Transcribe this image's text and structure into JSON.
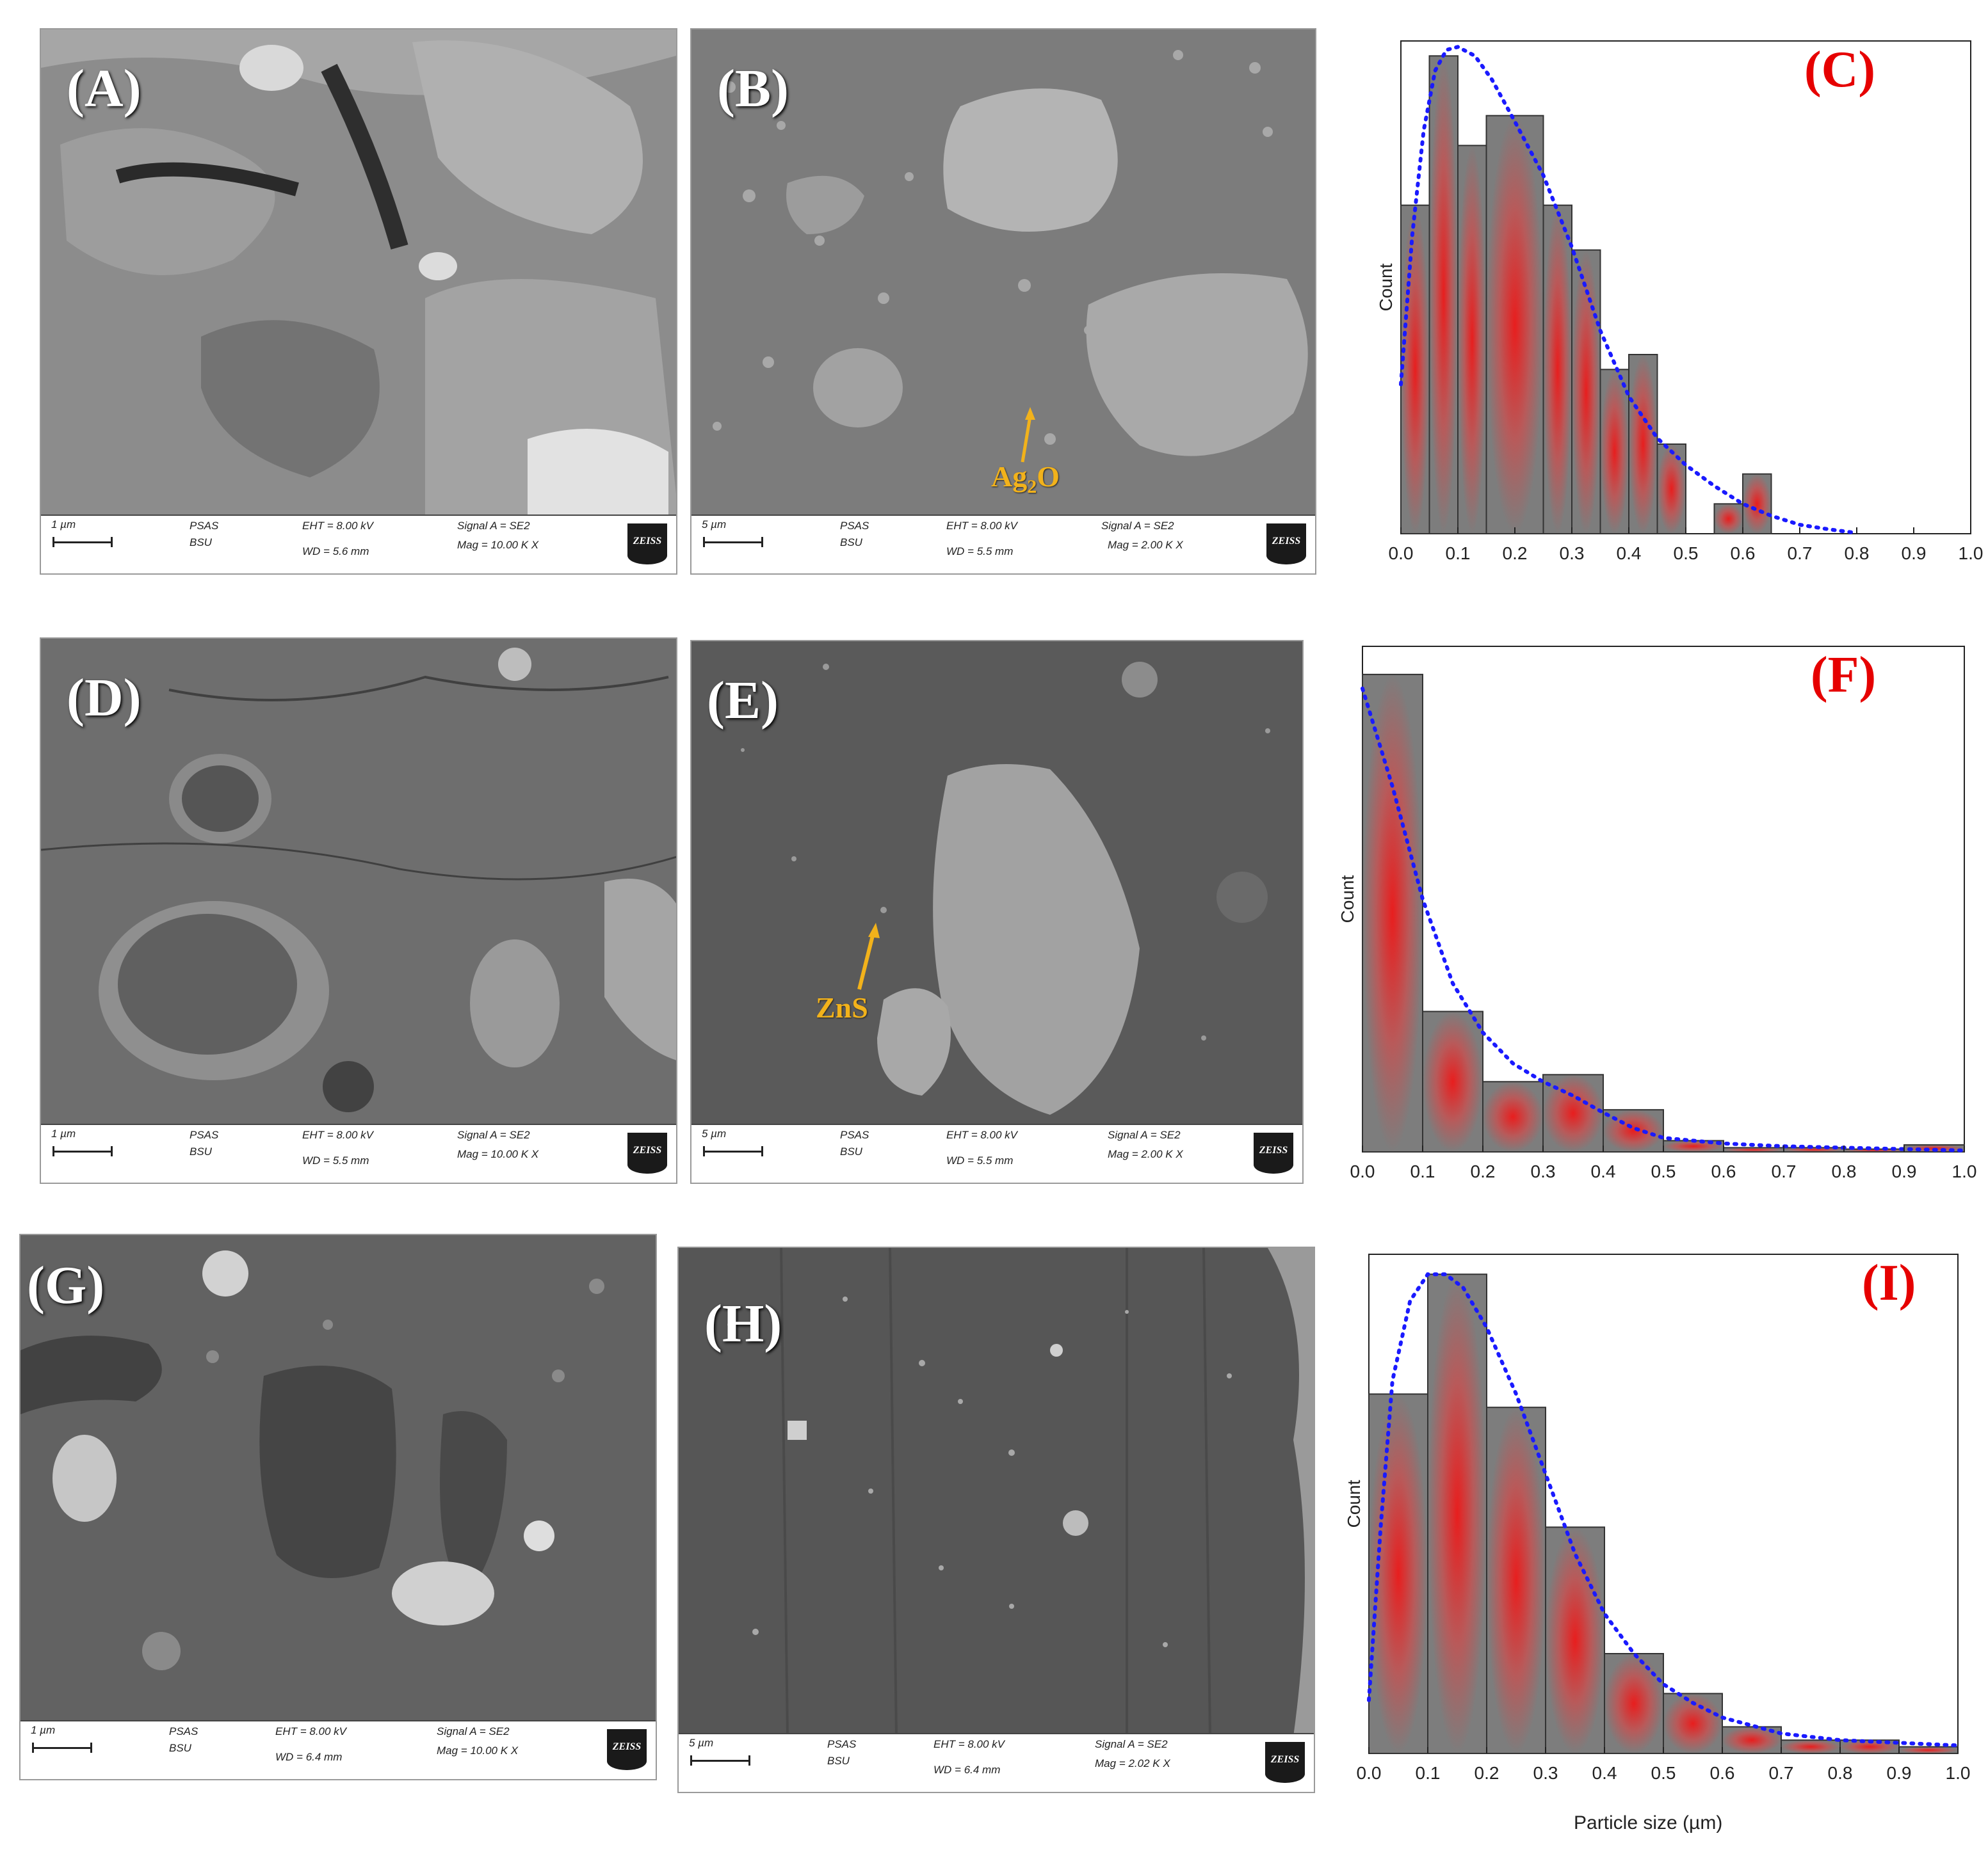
{
  "sem_panels": [
    {
      "id": "A",
      "label": "(A)",
      "scale": "1 µm",
      "lab": "PSAS",
      "dept": "BSU",
      "eht": "EHT = 8.00 kV",
      "wd": "WD = 5.6 mm",
      "signal": "Signal A = SE2",
      "mag": "Mag = 10.00 K X",
      "brand": "ZEISS",
      "tone": "#8a8a8a"
    },
    {
      "id": "B",
      "label": "(B)",
      "scale": "5 µm",
      "lab": "PSAS",
      "dept": "BSU",
      "eht": "EHT = 8.00 kV",
      "wd": "WD = 5.5 mm",
      "signal": "Signal A = SE2",
      "mag": "Mag = 2.00 K X",
      "brand": "ZEISS",
      "tone": "#7d7d7d",
      "annotation": "Ag2O"
    },
    {
      "id": "D",
      "label": "(D)",
      "scale": "1 µm",
      "lab": "PSAS",
      "dept": "BSU",
      "eht": "EHT = 8.00 kV",
      "wd": "WD = 5.5 mm",
      "signal": "Signal A = SE2",
      "mag": "Mag = 10.00 K X",
      "brand": "ZEISS",
      "tone": "#6e6e6e"
    },
    {
      "id": "E",
      "label": "(E)",
      "scale": "5 µm",
      "lab": "PSAS",
      "dept": "BSU",
      "eht": "EHT = 8.00 kV",
      "wd": "WD = 5.5 mm",
      "signal": "Signal A = SE2",
      "mag": "Mag = 2.00 K X",
      "brand": "ZEISS",
      "tone": "#5c5c5c",
      "annotation": "ZnS"
    },
    {
      "id": "G",
      "label": "(G)",
      "scale": "1 µm",
      "lab": "PSAS",
      "dept": "BSU",
      "eht": "EHT = 8.00 kV",
      "wd": "WD = 6.4 mm",
      "signal": "Signal A = SE2",
      "mag": "Mag = 10.00 K X",
      "brand": "ZEISS",
      "tone": "#636363"
    },
    {
      "id": "H",
      "label": "(H)",
      "scale": "5 µm",
      "lab": "PSAS",
      "dept": "BSU",
      "eht": "EHT = 8.00 kV",
      "wd": "WD = 6.4 mm",
      "signal": "Signal A = SE2",
      "mag": "Mag = 2.02 K X",
      "brand": "ZEISS",
      "tone": "#585858"
    }
  ],
  "chart_data": [
    {
      "type": "bar",
      "panel": "(C)",
      "ylabel": "Count",
      "xlabel": "",
      "xlim": [
        0.0,
        1.0
      ],
      "xticks": [
        "0.0",
        "0.1",
        "0.2",
        "0.3",
        "0.4",
        "0.5",
        "0.6",
        "0.7",
        "0.8",
        "0.9",
        "1.0"
      ],
      "bin_edges": [
        0.0,
        0.05,
        0.1,
        0.15,
        0.25,
        0.3,
        0.35,
        0.4,
        0.45,
        0.5,
        0.55,
        0.6,
        0.65
      ],
      "values": [
        11,
        16,
        13,
        14,
        11,
        9.5,
        5.5,
        6,
        3,
        0,
        1,
        2
      ],
      "ylim": [
        0,
        16.5
      ],
      "fit_curve": {
        "x": [
          0.0,
          0.02,
          0.04,
          0.06,
          0.08,
          0.1,
          0.13,
          0.16,
          0.2,
          0.25,
          0.3,
          0.35,
          0.4,
          0.45,
          0.5,
          0.55,
          0.6,
          0.65,
          0.7,
          0.75,
          0.79
        ],
        "y": [
          5,
          10,
          13.5,
          15.5,
          16.2,
          16.3,
          16,
          15.2,
          13.8,
          12,
          9.6,
          6.8,
          4.6,
          3.2,
          2.3,
          1.6,
          1.0,
          0.6,
          0.3,
          0.15,
          0.05
        ]
      },
      "grid": false
    },
    {
      "type": "bar",
      "panel": "(F)",
      "ylabel": "Count",
      "xlabel": "",
      "xlim": [
        0.0,
        1.0
      ],
      "xticks": [
        "0.0",
        "0.1",
        "0.2",
        "0.3",
        "0.4",
        "0.5",
        "0.6",
        "0.7",
        "0.8",
        "0.9",
        "1.0"
      ],
      "bin_edges": [
        0.0,
        0.1,
        0.2,
        0.3,
        0.4,
        0.5,
        0.6,
        0.7,
        0.8,
        0.9,
        1.0
      ],
      "values": [
        34,
        10,
        5,
        5.5,
        3,
        0.8,
        0.3,
        0.3,
        0.2,
        0.5
      ],
      "ylim": [
        0,
        36
      ],
      "fit_curve": {
        "x": [
          0.0,
          0.05,
          0.1,
          0.15,
          0.2,
          0.25,
          0.3,
          0.35,
          0.4,
          0.45,
          0.5,
          0.6,
          0.7,
          0.8,
          0.9,
          1.0
        ],
        "y": [
          33,
          26,
          18,
          12,
          8.5,
          6.3,
          5,
          4,
          2.8,
          1.7,
          1.0,
          0.6,
          0.4,
          0.3,
          0.2,
          0.1
        ]
      },
      "grid": false
    },
    {
      "type": "bar",
      "panel": "(I)",
      "ylabel": "Count",
      "xlabel": "Particle size (µm)",
      "xlim": [
        0.0,
        1.0
      ],
      "xticks": [
        "0.0",
        "0.1",
        "0.2",
        "0.3",
        "0.4",
        "0.5",
        "0.6",
        "0.7",
        "0.8",
        "0.9",
        "1.0"
      ],
      "bin_edges": [
        0.0,
        0.1,
        0.2,
        0.3,
        0.4,
        0.5,
        0.6,
        0.7,
        0.8,
        0.9,
        1.0
      ],
      "values": [
        27,
        36,
        26,
        17,
        7.5,
        4.5,
        2,
        1,
        1,
        0.5
      ],
      "ylim": [
        0,
        37.5
      ],
      "fit_curve": {
        "x": [
          0.0,
          0.02,
          0.04,
          0.07,
          0.1,
          0.13,
          0.16,
          0.2,
          0.25,
          0.3,
          0.35,
          0.4,
          0.45,
          0.5,
          0.55,
          0.6,
          0.7,
          0.8,
          0.9,
          1.0
        ],
        "y": [
          4,
          17,
          28,
          34,
          36,
          36,
          35,
          32,
          27,
          21,
          15,
          10.5,
          7.5,
          5.2,
          3.8,
          2.7,
          1.5,
          1.0,
          0.8,
          0.6
        ]
      },
      "grid": false
    }
  ]
}
